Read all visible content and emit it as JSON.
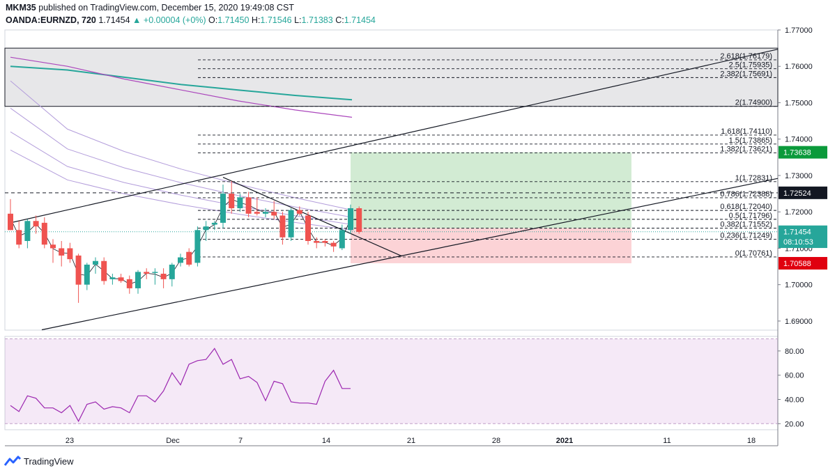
{
  "header": {
    "publisher": "MKM35",
    "published_text": "published on TradingView.com, December 15, 2020 19:49:08 CST",
    "symbol": "OANDA:EURNZD, 720",
    "last": "1.71454",
    "change": "+0.00004 (+0%)",
    "o_label": "O:",
    "o_value": "1.71450",
    "h_label": "H:",
    "h_value": "1.71546",
    "l_label": "L:",
    "l_value": "1.71383",
    "c_label": "C:",
    "c_value": "1.71454"
  },
  "footer": {
    "brand": "TradingView"
  },
  "colors": {
    "up": "#26a69a",
    "down": "#ef5350",
    "rsi": "#9c27b0",
    "ma_teal": "#26a69a"
  },
  "chart_data": {
    "type": "candlestick",
    "y_range": [
      1.6875,
      1.77
    ],
    "y_ticks": [
      "1.77000",
      "1.76000",
      "1.75000",
      "1.74000",
      "1.73000",
      "1.72000",
      "1.71000",
      "1.70000",
      "1.69000"
    ],
    "x_ticks": [
      "23",
      "Dec",
      "7",
      "14",
      "21",
      "28",
      "2021",
      "11",
      "18"
    ],
    "candles": [
      {
        "o": 1.7195,
        "h": 1.7235,
        "l": 1.715,
        "c": 1.715
      },
      {
        "o": 1.715,
        "h": 1.7175,
        "l": 1.71,
        "c": 1.711
      },
      {
        "o": 1.712,
        "h": 1.718,
        "l": 1.71,
        "c": 1.7175
      },
      {
        "o": 1.7175,
        "h": 1.719,
        "l": 1.714,
        "c": 1.716
      },
      {
        "o": 1.717,
        "h": 1.7185,
        "l": 1.71,
        "c": 1.711
      },
      {
        "o": 1.711,
        "h": 1.7125,
        "l": 1.706,
        "c": 1.71
      },
      {
        "o": 1.71,
        "h": 1.712,
        "l": 1.705,
        "c": 1.708
      },
      {
        "o": 1.71,
        "h": 1.7115,
        "l": 1.706,
        "c": 1.707
      },
      {
        "o": 1.708,
        "h": 1.7085,
        "l": 1.695,
        "c": 1.7
      },
      {
        "o": 1.7,
        "h": 1.706,
        "l": 1.6985,
        "c": 1.7055
      },
      {
        "o": 1.7055,
        "h": 1.7075,
        "l": 1.703,
        "c": 1.7065
      },
      {
        "o": 1.7065,
        "h": 1.7075,
        "l": 1.7,
        "c": 1.701
      },
      {
        "o": 1.7015,
        "h": 1.703,
        "l": 1.7,
        "c": 1.702
      },
      {
        "o": 1.702,
        "h": 1.703,
        "l": 1.7005,
        "c": 1.701
      },
      {
        "o": 1.7015,
        "h": 1.7025,
        "l": 1.6975,
        "c": 1.699
      },
      {
        "o": 1.699,
        "h": 1.704,
        "l": 1.6975,
        "c": 1.7035
      },
      {
        "o": 1.7035,
        "h": 1.7045,
        "l": 1.7015,
        "c": 1.703
      },
      {
        "o": 1.7035,
        "h": 1.7045,
        "l": 1.7,
        "c": 1.7035
      },
      {
        "o": 1.703,
        "h": 1.7045,
        "l": 1.699,
        "c": 1.7015
      },
      {
        "o": 1.7015,
        "h": 1.706,
        "l": 1.6995,
        "c": 1.7055
      },
      {
        "o": 1.706,
        "h": 1.7085,
        "l": 1.705,
        "c": 1.7075
      },
      {
        "o": 1.709,
        "h": 1.71,
        "l": 1.705,
        "c": 1.7055
      },
      {
        "o": 1.706,
        "h": 1.716,
        "l": 1.705,
        "c": 1.715
      },
      {
        "o": 1.715,
        "h": 1.7175,
        "l": 1.712,
        "c": 1.716
      },
      {
        "o": 1.7165,
        "h": 1.7175,
        "l": 1.715,
        "c": 1.717
      },
      {
        "o": 1.717,
        "h": 1.7275,
        "l": 1.7155,
        "c": 1.725
      },
      {
        "o": 1.725,
        "h": 1.7285,
        "l": 1.7195,
        "c": 1.721
      },
      {
        "o": 1.721,
        "h": 1.725,
        "l": 1.72,
        "c": 1.724
      },
      {
        "o": 1.724,
        "h": 1.7255,
        "l": 1.7185,
        "c": 1.7195
      },
      {
        "o": 1.72,
        "h": 1.724,
        "l": 1.719,
        "c": 1.7195
      },
      {
        "o": 1.7195,
        "h": 1.721,
        "l": 1.7185,
        "c": 1.72
      },
      {
        "o": 1.72,
        "h": 1.723,
        "l": 1.718,
        "c": 1.719
      },
      {
        "o": 1.719,
        "h": 1.72,
        "l": 1.711,
        "c": 1.713
      },
      {
        "o": 1.713,
        "h": 1.721,
        "l": 1.712,
        "c": 1.7205
      },
      {
        "o": 1.7205,
        "h": 1.7215,
        "l": 1.719,
        "c": 1.7195
      },
      {
        "o": 1.719,
        "h": 1.72,
        "l": 1.711,
        "c": 1.712
      },
      {
        "o": 1.712,
        "h": 1.713,
        "l": 1.71,
        "c": 1.7115
      },
      {
        "o": 1.712,
        "h": 1.7125,
        "l": 1.7105,
        "c": 1.7115
      },
      {
        "o": 1.7115,
        "h": 1.712,
        "l": 1.709,
        "c": 1.7105
      },
      {
        "o": 1.71,
        "h": 1.7165,
        "l": 1.7095,
        "c": 1.715
      },
      {
        "o": 1.715,
        "h": 1.722,
        "l": 1.714,
        "c": 1.721
      },
      {
        "o": 1.721,
        "h": 1.7215,
        "l": 1.714,
        "c": 1.7145
      }
    ],
    "fib_levels": [
      {
        "label": "2.618(1.76179)",
        "value": 1.76179
      },
      {
        "label": "2.5(1.75935)",
        "value": 1.75935
      },
      {
        "label": "2.382(1.75691)",
        "value": 1.75691
      },
      {
        "label": "2(1.74900)",
        "value": 1.749
      },
      {
        "label": "1.618(1.74110)",
        "value": 1.7411
      },
      {
        "label": "1.5(1.73865)",
        "value": 1.73865
      },
      {
        "label": "1.382(1.73621)",
        "value": 1.73621
      },
      {
        "label": "1(1.72831)",
        "value": 1.72831
      },
      {
        "label": "0.786(1.72388)",
        "value": 1.72388
      },
      {
        "label": "0.618(1.72040)",
        "value": 1.7204
      },
      {
        "label": "0.5(1.71796)",
        "value": 1.71796
      },
      {
        "label": "0.382(1.71552)",
        "value": 1.71552
      },
      {
        "label": "0.236(1.71249)",
        "value": 1.71249
      },
      {
        "label": "0(1.70761)",
        "value": 1.70761
      }
    ],
    "price_badges": [
      {
        "text": "1.73638",
        "value": 1.73638,
        "color": "#0b9a3b"
      },
      {
        "text": "1.72524",
        "value": 1.72524,
        "color": "#131722"
      },
      {
        "text": "1.71454",
        "value": 1.71454,
        "color": "#26a69a"
      },
      {
        "text": "08:10:53",
        "value": 1.7118,
        "color": "#26a69a"
      },
      {
        "text": "1.70588",
        "value": 1.70588,
        "color": "#e0000f"
      }
    ],
    "dashed_level": 1.72524,
    "last_price": 1.71454,
    "position": {
      "entry": 1.71552,
      "target": 1.73638,
      "stop": 1.70588
    },
    "resistance_zone": [
      1.749,
      1.765
    ],
    "ma_teal": [
      1.76,
      1.759,
      1.757,
      1.755,
      1.7535,
      1.752,
      1.7508
    ],
    "ma_purple": [
      1.7625,
      1.76,
      1.7565,
      1.7535,
      1.7505,
      1.748,
      1.746
    ],
    "rsi": {
      "y_ticks": [
        "80.00",
        "60.00",
        "40.00",
        "20.00"
      ],
      "range": [
        15,
        92
      ],
      "bands": [
        20,
        90
      ],
      "values": [
        35,
        30,
        43,
        41,
        33,
        33,
        29,
        35,
        22,
        36,
        38,
        32,
        34,
        33,
        29,
        43,
        43,
        38,
        47,
        62,
        52,
        69,
        72,
        73,
        82,
        69,
        73,
        57,
        59,
        54,
        39,
        55,
        53,
        38,
        37,
        37,
        36,
        55,
        64,
        49,
        49
      ]
    }
  }
}
